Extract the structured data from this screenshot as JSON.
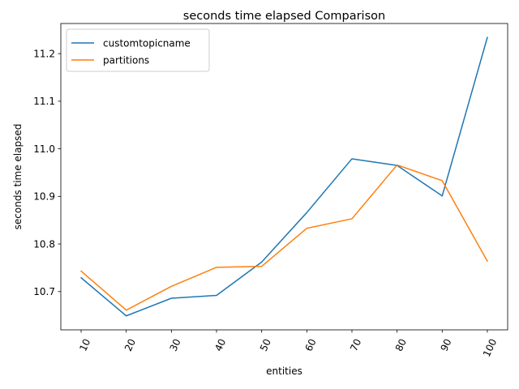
{
  "chart_data": {
    "type": "line",
    "title": "seconds time elapsed Comparison",
    "xlabel": "entities",
    "ylabel": "seconds time elapsed",
    "categories": [
      "10",
      "20",
      "30",
      "40",
      "50",
      "60",
      "70",
      "80",
      "90",
      "100"
    ],
    "x": [
      10,
      20,
      30,
      40,
      50,
      60,
      70,
      80,
      90,
      100
    ],
    "series": [
      {
        "name": "customtopicname",
        "color": "#1f77b4",
        "values": [
          10.729,
          10.649,
          10.686,
          10.692,
          10.762,
          10.866,
          10.979,
          10.965,
          10.901,
          11.234
        ]
      },
      {
        "name": "partitions",
        "color": "#ff7f0e",
        "values": [
          10.743,
          10.661,
          10.711,
          10.751,
          10.753,
          10.833,
          10.853,
          10.966,
          10.933,
          10.764
        ]
      }
    ],
    "yticks": [
      "10.7",
      "10.8",
      "10.9",
      "11.0",
      "11.1",
      "11.2"
    ],
    "ytick_values": [
      10.7,
      10.8,
      10.9,
      11.0,
      11.1,
      11.2
    ],
    "ylim": [
      10.6196,
      11.2633
    ],
    "xlim": [
      5.5,
      104.5
    ],
    "grid": false,
    "legend_position": "top-left",
    "xtick_rotation": "rotated"
  }
}
